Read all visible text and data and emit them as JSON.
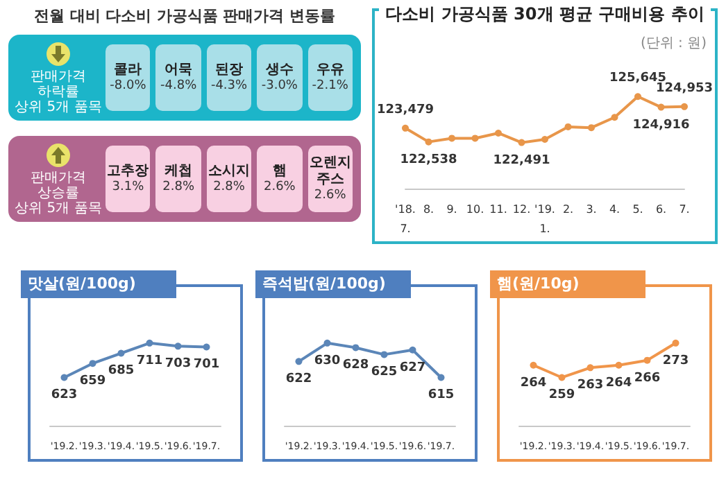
{
  "chart_data": [
    {
      "type": "other",
      "title": "전월 대비 다소비 가공식품 판매가격 변동률",
      "subtitle": "판매가격\n하락률\n상위 5개 품목",
      "color": "#a9dfe8",
      "categories": [
        "콜라",
        "어묵",
        "된장",
        "생수",
        "우유"
      ],
      "values": [
        -8.0,
        -4.8,
        -4.3,
        -3.0,
        -2.1
      ],
      "value_labels": [
        "-8.0%",
        "-4.8%",
        "-4.3%",
        "-3.0%",
        "-2.1%"
      ]
    },
    {
      "type": "other",
      "subtitle": "판매가격\n상승률\n상위 5개 품목",
      "color": "#f8d0e2",
      "categories": [
        "고추장",
        "케첩",
        "소시지",
        "햄",
        "오렌지\n주스"
      ],
      "values": [
        3.1,
        2.8,
        2.8,
        2.6,
        2.6
      ],
      "value_labels": [
        "3.1%",
        "2.8%",
        "2.8%",
        "2.6%",
        "2.6%"
      ]
    },
    {
      "type": "line",
      "title": "다소비 가공식품 30개 평균 구매비용 추이",
      "annotations": [
        "(단위 : 원)"
      ],
      "color": "#e8964a",
      "marker": "circle",
      "categories": [
        "'18.\n7.",
        "8.",
        "9.",
        "10.",
        "11.",
        "12.",
        "'19.\n1.",
        "2.",
        "3.",
        "4.",
        "5.",
        "6.",
        "7."
      ],
      "values": [
        123479,
        122538,
        122785,
        122785,
        123140,
        122491,
        122710,
        123570,
        123510,
        124220,
        125645,
        124916,
        124953
      ],
      "value_labels": [
        "123,479",
        "122,538",
        null,
        null,
        null,
        "122,491",
        null,
        null,
        null,
        null,
        "125,645",
        "124,916",
        "124,953"
      ]
    },
    {
      "type": "line",
      "title": "맛살(원/100g)",
      "color": "#5b86b8",
      "marker": "circle",
      "data_labels": true,
      "categories": [
        "'19.2.",
        "'19.3.",
        "'19.4.",
        "'19.5.",
        "'19.6.",
        "'19.7."
      ],
      "values": [
        623,
        659,
        685,
        711,
        703,
        701
      ]
    },
    {
      "type": "line",
      "title": "즉석밥(원/100g)",
      "color": "#5b86b8",
      "marker": "circle",
      "data_labels": true,
      "categories": [
        "'19.2.",
        "'19.3.",
        "'19.4.",
        "'19.5.",
        "'19.6.",
        "'19.7."
      ],
      "values": [
        622,
        630,
        628,
        625,
        627,
        615
      ]
    },
    {
      "type": "line",
      "title": "햄(원/10g)",
      "color": "#f0954a",
      "marker": "circle",
      "data_labels": true,
      "categories": [
        "'19.2.",
        "'19.3.",
        "'19.4.",
        "'19.5.",
        "'19.6.",
        "'19.7."
      ],
      "values": [
        264,
        259,
        263,
        264,
        266,
        273
      ]
    }
  ]
}
